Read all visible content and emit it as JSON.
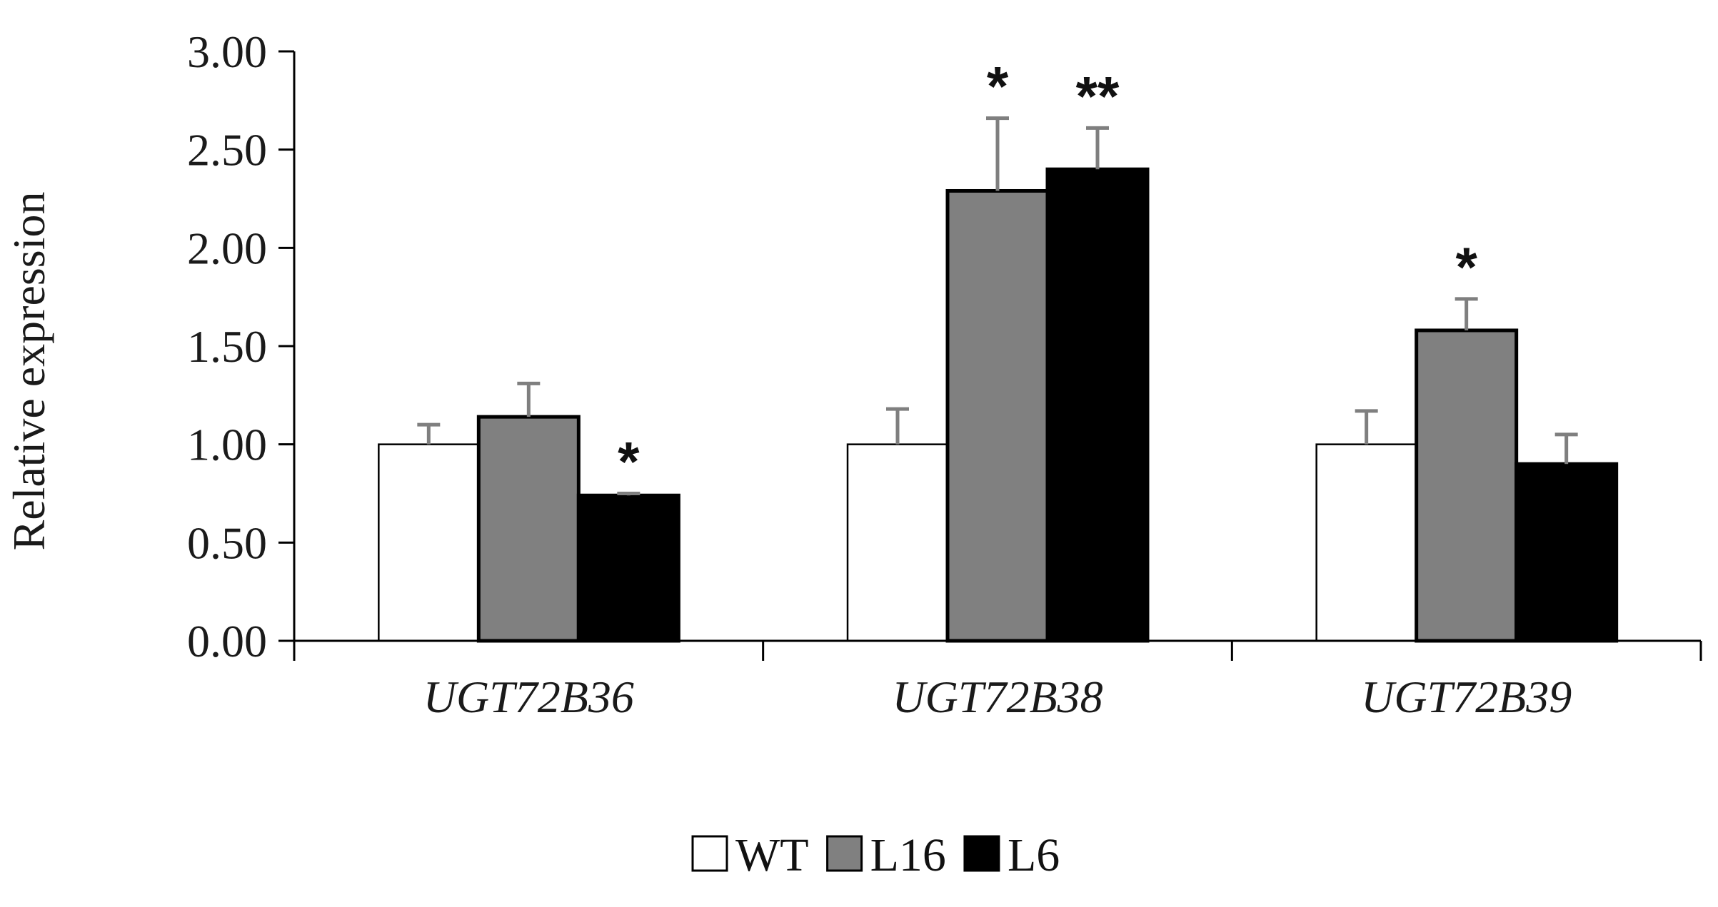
{
  "chart_data": {
    "type": "bar",
    "title": "",
    "xlabel": "",
    "ylabel": "Relative expression",
    "ylim": [
      0,
      3.0
    ],
    "yticks": [
      "0.00",
      "0.50",
      "1.00",
      "1.50",
      "2.00",
      "2.50",
      "3.00"
    ],
    "grid": false,
    "legend_position": "bottom-center",
    "categories": [
      "UGT72B36",
      "UGT72B38",
      "UGT72B39"
    ],
    "series": [
      {
        "name": "WT",
        "color": "#ffffff",
        "values": [
          1.0,
          1.0,
          1.0
        ],
        "errors": [
          0.1,
          0.18,
          0.17
        ],
        "significance": [
          "",
          "",
          ""
        ]
      },
      {
        "name": "L16",
        "color": "#808080",
        "values": [
          1.14,
          2.29,
          1.58
        ],
        "errors": [
          0.17,
          0.37,
          0.16
        ],
        "significance": [
          "",
          "*",
          "*"
        ]
      },
      {
        "name": "L6",
        "color": "#000000",
        "values": [
          0.74,
          2.4,
          0.9
        ],
        "errors": [
          0.01,
          0.21,
          0.15
        ],
        "significance": [
          "*",
          "**",
          ""
        ]
      }
    ]
  }
}
